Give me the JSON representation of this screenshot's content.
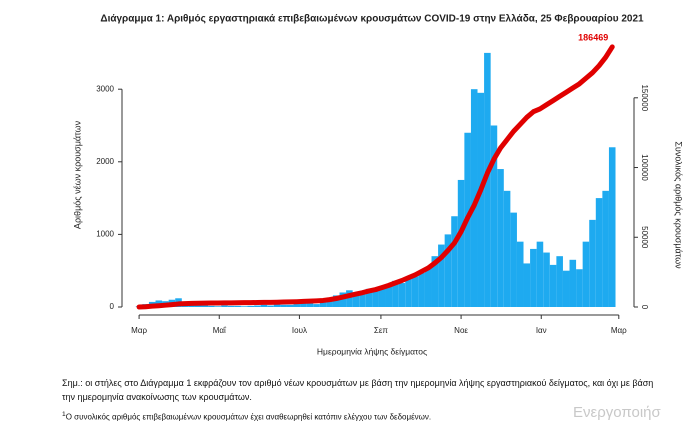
{
  "chart_data": {
    "type": "bar",
    "title": "Διάγραμμα 1: Αριθμός εργαστηριακά επιβεβαιωμένων κρουσμάτων COVID-19 στην Ελλάδα, 25 Φεβρουαρίου 2021",
    "x_label": "Ημερομηνία λήψης δείγματος",
    "y_label": "Αριθμός νέων κρουσμάτων",
    "y2_label": "Συνολικός αριθμός κρουσμάτων",
    "x": [
      0,
      5,
      10,
      15,
      20,
      25,
      30,
      35,
      40,
      45,
      50,
      55,
      60,
      65,
      70,
      75,
      80,
      85,
      90,
      95,
      100,
      105,
      110,
      115,
      120,
      125,
      130,
      135,
      140,
      145,
      150,
      155,
      160,
      165,
      170,
      175,
      180,
      185,
      190,
      195,
      200,
      205,
      210,
      215,
      220,
      225,
      230,
      235,
      240,
      245,
      250,
      255,
      260,
      265,
      270,
      275,
      280,
      285,
      290,
      295,
      300,
      305,
      310,
      315,
      320,
      325,
      330,
      335,
      340,
      345,
      350,
      355,
      360
    ],
    "series": [
      {
        "color": "#1eaaf0",
        "values": [
          10,
          40,
          70,
          90,
          80,
          100,
          120,
          60,
          80,
          40,
          20,
          15,
          10,
          20,
          15,
          15,
          10,
          15,
          20,
          30,
          20,
          40,
          30,
          30,
          40,
          50,
          60,
          40,
          110,
          130,
          160,
          200,
          230,
          190,
          200,
          250,
          220,
          280,
          300,
          360,
          330,
          390,
          420,
          470,
          540,
          700,
          860,
          1000,
          1250,
          1750,
          2400,
          3000,
          2950,
          3500,
          2500,
          1900,
          1600,
          1300,
          900,
          600,
          800,
          900,
          750,
          580,
          700,
          500,
          650,
          520,
          900,
          1200,
          1500,
          1600,
          2200
        ]
      },
      {
        "color": "#e00000",
        "axis": "y2",
        "values": [
          7,
          200,
          600,
          900,
          1300,
          1700,
          2200,
          2400,
          2600,
          2700,
          2800,
          2850,
          2900,
          2950,
          3000,
          3050,
          3100,
          3150,
          3200,
          3300,
          3350,
          3450,
          3550,
          3650,
          3800,
          4000,
          4200,
          4400,
          4700,
          5300,
          6100,
          7100,
          8200,
          9300,
          10300,
          11500,
          12500,
          14000,
          15500,
          17300,
          19000,
          21000,
          23000,
          25500,
          28000,
          31500,
          35500,
          40500,
          46000,
          54000,
          64000,
          73000,
          84000,
          96000,
          106000,
          114000,
          120000,
          126000,
          131000,
          136000,
          140000,
          142000,
          145000,
          148000,
          151000,
          154000,
          157000,
          160000,
          164000,
          168000,
          173000,
          179000,
          186469
        ]
      }
    ],
    "end_label": "186469",
    "xlim": [
      -13,
      372
    ],
    "xticks": [
      {
        "value": 0,
        "label": "Μαρ"
      },
      {
        "value": 61,
        "label": "Μαΐ"
      },
      {
        "value": 122,
        "label": "Ιουλ"
      },
      {
        "value": 184,
        "label": "Σεπ"
      },
      {
        "value": 245,
        "label": "Νοε"
      },
      {
        "value": 306,
        "label": "Ιαν"
      },
      {
        "value": 365,
        "label": "Μαρ"
      }
    ],
    "ylim": [
      0,
      3650
    ],
    "yticks": [
      0,
      1000,
      2000,
      3000
    ],
    "y2lim": [
      0,
      190000
    ],
    "y2ticks": [
      0,
      50000,
      100000,
      150000
    ]
  },
  "notes": {
    "note": "Σημ.: οι στήλες στο Διάγραμμα 1 εκφράζουν τον αριθμό νέων κρουσμάτων με βάση την ημερομηνία λήψης εργαστηριακού δείγματος, και όχι με βάση την ημερομηνία ανακοίνωσης των κρουσμάτων.",
    "footnote_mark": "1",
    "footnote": "Ο συνολικός αριθμός επιβεβαιωμένων κρουσμάτων έχει αναθεωρηθεί κατόπιν ελέγχου των δεδομένων.",
    "watermark": "Ενεργοποιήσ"
  }
}
